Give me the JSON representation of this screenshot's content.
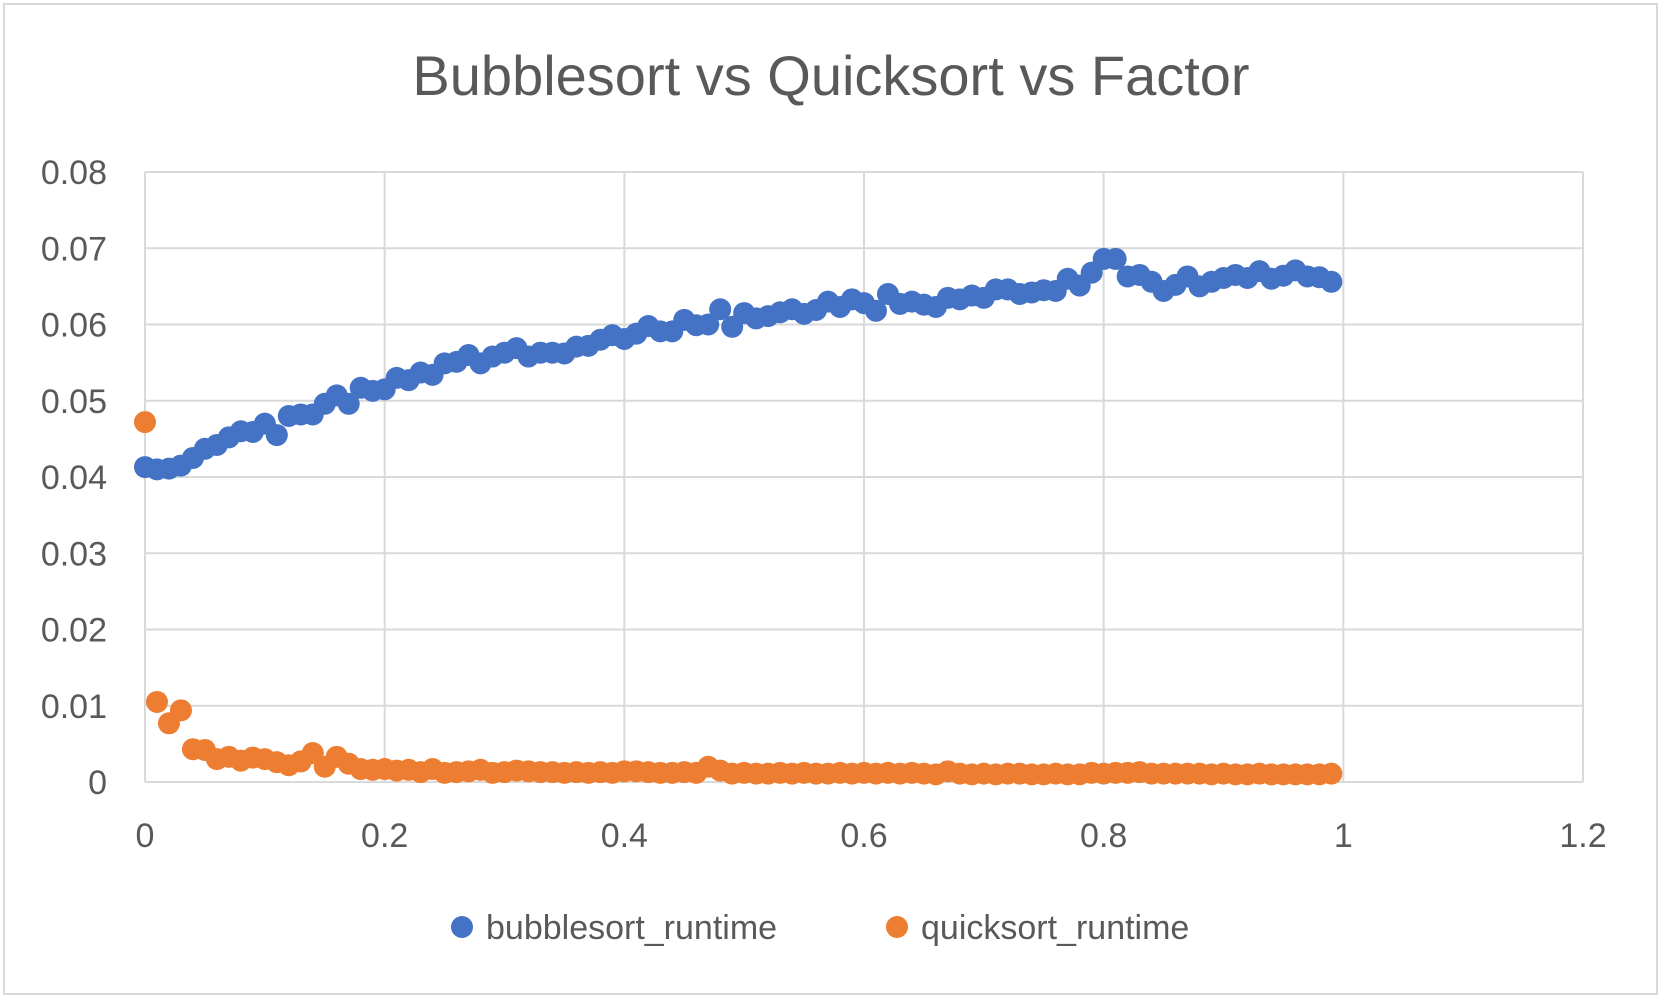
{
  "chart_data": {
    "type": "scatter",
    "title": "Bubblesort vs Quicksort vs Factor",
    "xlabel": "",
    "ylabel": "",
    "xlim": [
      0,
      1.2
    ],
    "ylim": [
      0,
      0.08
    ],
    "x_ticks": [
      "0",
      "0.2",
      "0.4",
      "0.6",
      "0.8",
      "1",
      "1.2"
    ],
    "y_ticks": [
      "0",
      "0.01",
      "0.02",
      "0.03",
      "0.04",
      "0.05",
      "0.06",
      "0.07",
      "0.08"
    ],
    "grid": true,
    "legend_position": "bottom",
    "series": [
      {
        "name": "bubblesort_runtime",
        "color": "#4472c4",
        "points": [
          [
            0.0,
            0.0413
          ],
          [
            0.01,
            0.041
          ],
          [
            0.02,
            0.0411
          ],
          [
            0.03,
            0.0415
          ],
          [
            0.04,
            0.0425
          ],
          [
            0.05,
            0.0437
          ],
          [
            0.06,
            0.0442
          ],
          [
            0.07,
            0.0452
          ],
          [
            0.08,
            0.046
          ],
          [
            0.09,
            0.0459
          ],
          [
            0.1,
            0.047
          ],
          [
            0.11,
            0.0455
          ],
          [
            0.12,
            0.048
          ],
          [
            0.13,
            0.0482
          ],
          [
            0.14,
            0.0482
          ],
          [
            0.15,
            0.0496
          ],
          [
            0.16,
            0.0507
          ],
          [
            0.17,
            0.0496
          ],
          [
            0.18,
            0.0517
          ],
          [
            0.19,
            0.0513
          ],
          [
            0.2,
            0.0515
          ],
          [
            0.21,
            0.053
          ],
          [
            0.22,
            0.0527
          ],
          [
            0.23,
            0.0537
          ],
          [
            0.24,
            0.0534
          ],
          [
            0.25,
            0.0549
          ],
          [
            0.26,
            0.0551
          ],
          [
            0.27,
            0.056
          ],
          [
            0.28,
            0.0549
          ],
          [
            0.29,
            0.0558
          ],
          [
            0.3,
            0.0563
          ],
          [
            0.31,
            0.0569
          ],
          [
            0.32,
            0.0558
          ],
          [
            0.33,
            0.0563
          ],
          [
            0.34,
            0.0563
          ],
          [
            0.35,
            0.0562
          ],
          [
            0.36,
            0.0571
          ],
          [
            0.37,
            0.0572
          ],
          [
            0.38,
            0.058
          ],
          [
            0.39,
            0.0586
          ],
          [
            0.4,
            0.0581
          ],
          [
            0.41,
            0.0588
          ],
          [
            0.42,
            0.0598
          ],
          [
            0.43,
            0.0591
          ],
          [
            0.44,
            0.0591
          ],
          [
            0.45,
            0.0606
          ],
          [
            0.46,
            0.0599
          ],
          [
            0.47,
            0.06
          ],
          [
            0.48,
            0.062
          ],
          [
            0.49,
            0.0597
          ],
          [
            0.5,
            0.0615
          ],
          [
            0.51,
            0.0608
          ],
          [
            0.52,
            0.0611
          ],
          [
            0.53,
            0.0616
          ],
          [
            0.54,
            0.062
          ],
          [
            0.55,
            0.0614
          ],
          [
            0.56,
            0.0619
          ],
          [
            0.57,
            0.063
          ],
          [
            0.58,
            0.0623
          ],
          [
            0.59,
            0.0633
          ],
          [
            0.6,
            0.0628
          ],
          [
            0.61,
            0.0618
          ],
          [
            0.62,
            0.064
          ],
          [
            0.63,
            0.0627
          ],
          [
            0.64,
            0.063
          ],
          [
            0.65,
            0.0626
          ],
          [
            0.66,
            0.0623
          ],
          [
            0.67,
            0.0635
          ],
          [
            0.68,
            0.0633
          ],
          [
            0.69,
            0.0638
          ],
          [
            0.7,
            0.0635
          ],
          [
            0.71,
            0.0646
          ],
          [
            0.72,
            0.0646
          ],
          [
            0.73,
            0.064
          ],
          [
            0.74,
            0.0642
          ],
          [
            0.75,
            0.0645
          ],
          [
            0.76,
            0.0644
          ],
          [
            0.77,
            0.066
          ],
          [
            0.78,
            0.0651
          ],
          [
            0.79,
            0.0668
          ],
          [
            0.8,
            0.0686
          ],
          [
            0.81,
            0.0686
          ],
          [
            0.82,
            0.0663
          ],
          [
            0.83,
            0.0665
          ],
          [
            0.84,
            0.0656
          ],
          [
            0.85,
            0.0644
          ],
          [
            0.86,
            0.0652
          ],
          [
            0.87,
            0.0663
          ],
          [
            0.88,
            0.065
          ],
          [
            0.89,
            0.0656
          ],
          [
            0.9,
            0.0661
          ],
          [
            0.91,
            0.0665
          ],
          [
            0.92,
            0.0661
          ],
          [
            0.93,
            0.067
          ],
          [
            0.94,
            0.066
          ],
          [
            0.95,
            0.0664
          ],
          [
            0.96,
            0.0671
          ],
          [
            0.97,
            0.0663
          ],
          [
            0.98,
            0.0662
          ],
          [
            0.99,
            0.0656
          ]
        ]
      },
      {
        "name": "quicksort_runtime",
        "color": "#ed7d31",
        "points": [
          [
            0.0,
            0.0472
          ],
          [
            0.01,
            0.0105
          ],
          [
            0.02,
            0.0077
          ],
          [
            0.03,
            0.0094
          ],
          [
            0.04,
            0.0043
          ],
          [
            0.05,
            0.0042
          ],
          [
            0.06,
            0.003
          ],
          [
            0.07,
            0.0033
          ],
          [
            0.08,
            0.0028
          ],
          [
            0.09,
            0.0032
          ],
          [
            0.1,
            0.003
          ],
          [
            0.11,
            0.0026
          ],
          [
            0.12,
            0.0022
          ],
          [
            0.13,
            0.0027
          ],
          [
            0.14,
            0.0038
          ],
          [
            0.15,
            0.002
          ],
          [
            0.16,
            0.0033
          ],
          [
            0.17,
            0.0024
          ],
          [
            0.18,
            0.0017
          ],
          [
            0.19,
            0.0016
          ],
          [
            0.2,
            0.0017
          ],
          [
            0.21,
            0.0015
          ],
          [
            0.22,
            0.0016
          ],
          [
            0.23,
            0.0013
          ],
          [
            0.24,
            0.0017
          ],
          [
            0.25,
            0.0012
          ],
          [
            0.26,
            0.0013
          ],
          [
            0.27,
            0.0014
          ],
          [
            0.28,
            0.0016
          ],
          [
            0.29,
            0.0012
          ],
          [
            0.3,
            0.0013
          ],
          [
            0.31,
            0.0015
          ],
          [
            0.32,
            0.0014
          ],
          [
            0.33,
            0.0013
          ],
          [
            0.34,
            0.0013
          ],
          [
            0.35,
            0.0012
          ],
          [
            0.36,
            0.0013
          ],
          [
            0.37,
            0.0012
          ],
          [
            0.38,
            0.0013
          ],
          [
            0.39,
            0.0012
          ],
          [
            0.4,
            0.0014
          ],
          [
            0.41,
            0.0014
          ],
          [
            0.42,
            0.0013
          ],
          [
            0.43,
            0.0012
          ],
          [
            0.44,
            0.0012
          ],
          [
            0.45,
            0.0013
          ],
          [
            0.46,
            0.0012
          ],
          [
            0.47,
            0.002
          ],
          [
            0.48,
            0.0015
          ],
          [
            0.49,
            0.0011
          ],
          [
            0.5,
            0.0012
          ],
          [
            0.51,
            0.0011
          ],
          [
            0.52,
            0.0011
          ],
          [
            0.53,
            0.0012
          ],
          [
            0.54,
            0.0011
          ],
          [
            0.55,
            0.0012
          ],
          [
            0.56,
            0.0011
          ],
          [
            0.57,
            0.0011
          ],
          [
            0.58,
            0.0012
          ],
          [
            0.59,
            0.0011
          ],
          [
            0.6,
            0.0012
          ],
          [
            0.61,
            0.0011
          ],
          [
            0.62,
            0.0012
          ],
          [
            0.63,
            0.0011
          ],
          [
            0.64,
            0.0012
          ],
          [
            0.65,
            0.0011
          ],
          [
            0.66,
            0.001
          ],
          [
            0.67,
            0.0014
          ],
          [
            0.68,
            0.0011
          ],
          [
            0.69,
            0.001
          ],
          [
            0.7,
            0.0011
          ],
          [
            0.71,
            0.001
          ],
          [
            0.72,
            0.0011
          ],
          [
            0.73,
            0.0011
          ],
          [
            0.74,
            0.001
          ],
          [
            0.75,
            0.001
          ],
          [
            0.76,
            0.0011
          ],
          [
            0.77,
            0.001
          ],
          [
            0.78,
            0.001
          ],
          [
            0.79,
            0.0012
          ],
          [
            0.8,
            0.0011
          ],
          [
            0.81,
            0.0012
          ],
          [
            0.82,
            0.0012
          ],
          [
            0.83,
            0.0013
          ],
          [
            0.84,
            0.0011
          ],
          [
            0.85,
            0.0011
          ],
          [
            0.86,
            0.0011
          ],
          [
            0.87,
            0.0011
          ],
          [
            0.88,
            0.0011
          ],
          [
            0.89,
            0.001
          ],
          [
            0.9,
            0.0011
          ],
          [
            0.91,
            0.001
          ],
          [
            0.92,
            0.001
          ],
          [
            0.93,
            0.0011
          ],
          [
            0.94,
            0.001
          ],
          [
            0.95,
            0.001
          ],
          [
            0.96,
            0.001
          ],
          [
            0.97,
            0.001
          ],
          [
            0.98,
            0.001
          ],
          [
            0.99,
            0.0011
          ]
        ]
      }
    ]
  }
}
